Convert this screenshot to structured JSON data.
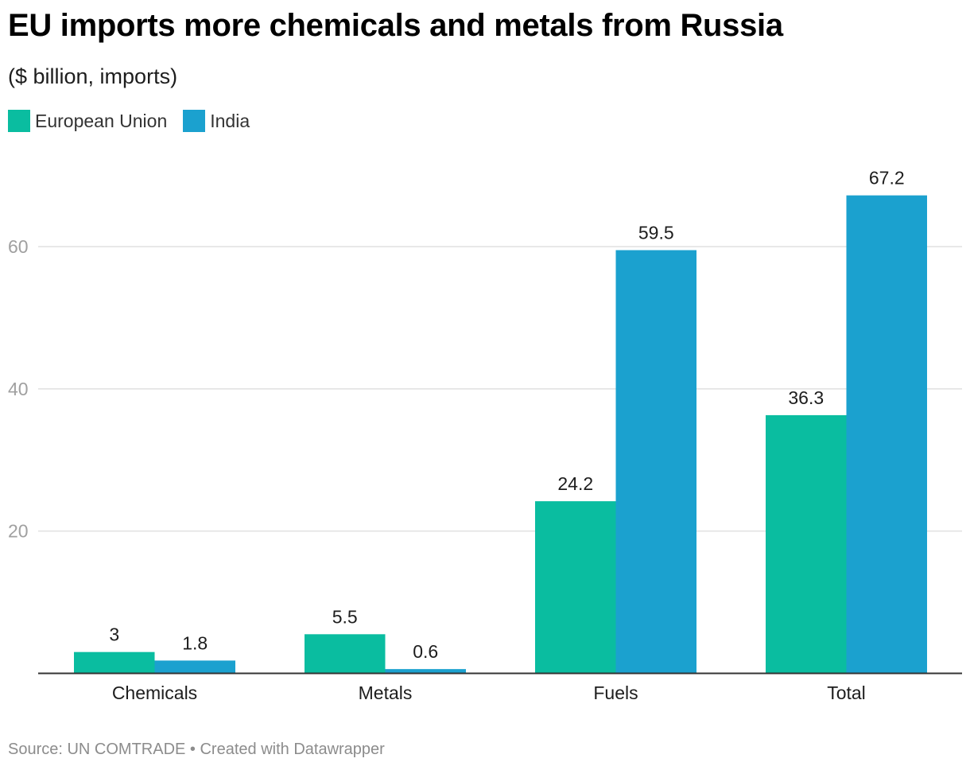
{
  "colors": {
    "eu": "#0ABDA0",
    "india": "#1BA1CF",
    "grid": "#e1e1e1",
    "axis": "#333333",
    "tick_text": "#a0a0a0"
  },
  "chart_data": {
    "type": "bar",
    "title": "EU imports more chemicals and metals from Russia",
    "subtitle": "($ billion, imports)",
    "xlabel": "",
    "ylabel": "",
    "categories": [
      "Chemicals",
      "Metals",
      "Fuels",
      "Total"
    ],
    "series": [
      {
        "name": "European Union",
        "color": "#0ABDA0",
        "values": [
          3,
          5.5,
          24.2,
          36.3
        ],
        "labels": [
          "3",
          "5.5",
          "24.2",
          "36.3"
        ]
      },
      {
        "name": "India",
        "color": "#1BA1CF",
        "values": [
          1.8,
          0.6,
          59.5,
          67.2
        ],
        "labels": [
          "1.8",
          "0.6",
          "59.5",
          "67.2"
        ]
      }
    ],
    "yticks": [
      20,
      40,
      60
    ],
    "ytick_labels": [
      "20",
      "40",
      "60"
    ],
    "ylim": [
      0,
      67.2
    ],
    "grid": true,
    "legend": "top-left"
  },
  "footer": {
    "source": "Source: UN COMTRADE • Created with Datawrapper"
  }
}
